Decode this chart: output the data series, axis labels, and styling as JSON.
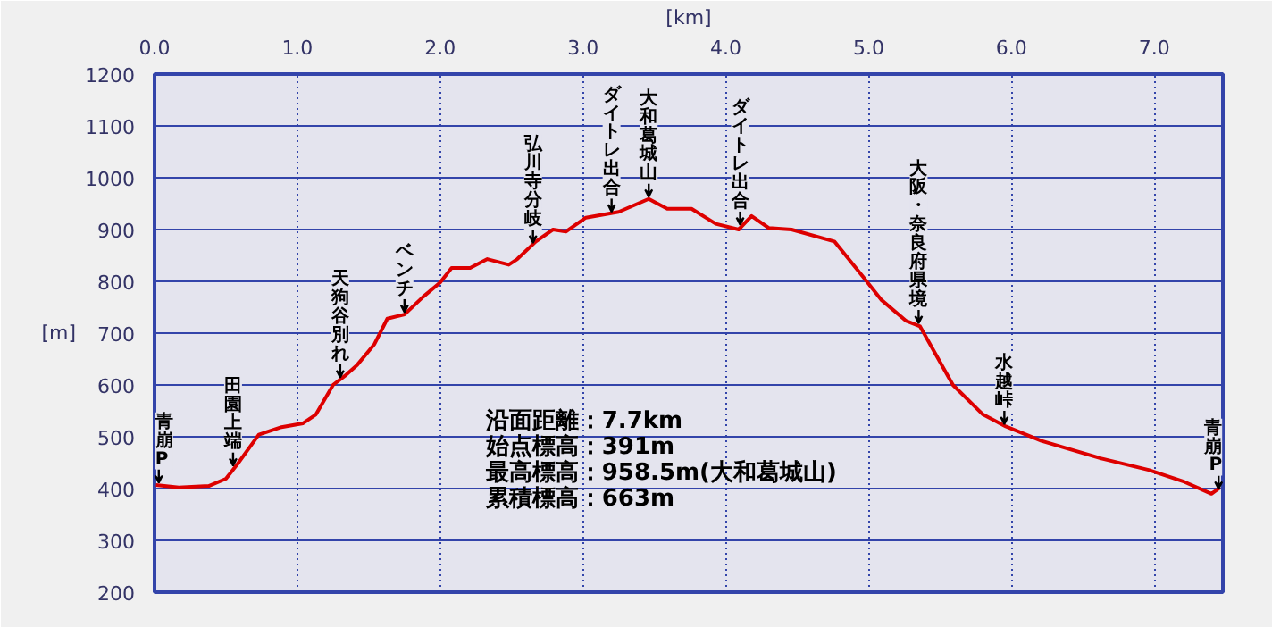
{
  "chart_data": {
    "type": "line",
    "xlabel": "[km]",
    "ylabel": "[m]",
    "x": [
      0.01,
      0.17,
      0.38,
      0.5,
      0.58,
      0.73,
      0.88,
      1.04,
      1.13,
      1.25,
      1.33,
      1.42,
      1.54,
      1.63,
      1.75,
      1.88,
      2.0,
      2.08,
      2.21,
      2.33,
      2.48,
      2.54,
      2.67,
      2.79,
      2.88,
      3.02,
      3.25,
      3.46,
      3.59,
      3.76,
      3.93,
      4.09,
      4.18,
      4.3,
      4.46,
      4.76,
      4.96,
      5.09,
      5.26,
      5.36,
      5.59,
      5.8,
      5.96,
      6.21,
      6.63,
      6.96,
      7.21,
      7.4,
      7.46
    ],
    "series": [
      {
        "color": "#dd0000",
        "values": [
          407,
          402,
          405,
          419,
          447,
          504,
          518,
          526,
          543,
          600,
          617,
          639,
          679,
          728,
          736,
          770,
          798,
          826,
          826,
          843,
          832,
          843,
          877,
          900,
          896,
          923,
          934,
          959,
          940,
          940,
          911,
          900,
          926,
          903,
          900,
          877,
          809,
          764,
          724,
          713,
          600,
          543,
          520,
          492,
          458,
          436,
          413,
          390,
          402
        ]
      }
    ],
    "xlim": [
      0,
      7.48
    ],
    "ylim": [
      200,
      1200
    ],
    "xticks": [
      {
        "value": 0,
        "label": "0.0"
      },
      {
        "value": 1,
        "label": "1.0"
      },
      {
        "value": 2,
        "label": "2.0"
      },
      {
        "value": 3,
        "label": "3.0"
      },
      {
        "value": 4,
        "label": "4.0"
      },
      {
        "value": 5,
        "label": "5.0"
      },
      {
        "value": 6,
        "label": "6.0"
      },
      {
        "value": 7,
        "label": "7.0"
      }
    ],
    "yticks": [
      200,
      300,
      400,
      500,
      600,
      700,
      800,
      900,
      1000,
      1100,
      1200
    ],
    "grid": true,
    "line_style": "solid",
    "marker": "none",
    "annotations": [
      {
        "text": "青崩P",
        "x": 0.01,
        "y": 407
      },
      {
        "text": "田園上端",
        "x": 0.55,
        "y": 440
      },
      {
        "text": "天狗谷別れ",
        "x": 1.3,
        "y": 610
      },
      {
        "text": "ベンチ",
        "x": 1.75,
        "y": 736
      },
      {
        "text": "弘川寺分岐",
        "x": 2.65,
        "y": 870
      },
      {
        "text": "ダイトレ出合",
        "x": 3.2,
        "y": 930
      },
      {
        "text": "大和葛城山",
        "x": 3.46,
        "y": 959
      },
      {
        "text": "ダイトレ出合",
        "x": 4.1,
        "y": 905
      },
      {
        "text": "大阪・奈良府県境",
        "x": 5.35,
        "y": 715
      },
      {
        "text": "水越峠",
        "x": 5.95,
        "y": 520
      },
      {
        "text": "青崩P",
        "x": 7.45,
        "y": 395
      },
      "沿面距離：7.7km",
      "始点標高：391m",
      "最高標高：958.5m(大和葛城山)",
      "累積標高：663m"
    ]
  }
}
